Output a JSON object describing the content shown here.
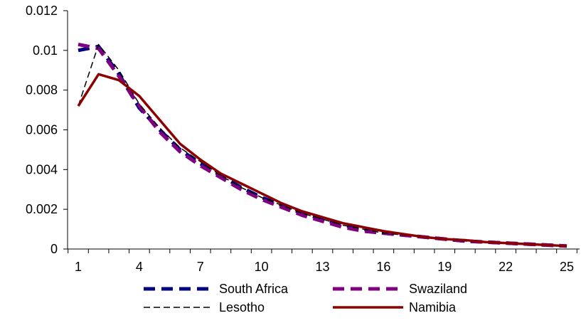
{
  "chart_data": {
    "type": "line",
    "title": "",
    "xlabel": "",
    "ylabel": "",
    "x": [
      1,
      2,
      3,
      4,
      5,
      6,
      7,
      8,
      9,
      10,
      11,
      12,
      13,
      14,
      15,
      16,
      17,
      18,
      19,
      20,
      21,
      22,
      23,
      24,
      25
    ],
    "x_ticks": [
      1,
      4,
      7,
      10,
      13,
      16,
      19,
      22,
      25
    ],
    "x_tick_labels": [
      "1",
      "4",
      "7",
      "10",
      "13",
      "16",
      "19",
      "22",
      "25"
    ],
    "xlim": [
      1,
      25
    ],
    "y_ticks": [
      0,
      0.002,
      0.004,
      0.006,
      0.008,
      0.01,
      0.012
    ],
    "y_tick_labels": [
      "0",
      "0.002",
      "0.004",
      "0.006",
      "0.008",
      "0.01",
      "0.012"
    ],
    "ylim": [
      0,
      0.012
    ],
    "grid": false,
    "legend_position": "bottom",
    "series": [
      {
        "name": "South Africa",
        "color": "#000080",
        "style": "thick-dash",
        "values": [
          0.01,
          0.0102,
          0.0088,
          0.0071,
          0.006,
          0.005,
          0.0043,
          0.0037,
          0.0031,
          0.0026,
          0.0022,
          0.0018,
          0.0015,
          0.0012,
          0.001,
          0.0008,
          0.0007,
          0.0006,
          0.0005,
          0.0004,
          0.00035,
          0.0003,
          0.00025,
          0.0002,
          0.00015
        ]
      },
      {
        "name": "Swaziland",
        "color": "#800080",
        "style": "thick-dash",
        "values": [
          0.0103,
          0.0101,
          0.0087,
          0.0072,
          0.0059,
          0.0049,
          0.0042,
          0.0036,
          0.003,
          0.0025,
          0.0021,
          0.0017,
          0.0014,
          0.0011,
          0.0009,
          0.0008,
          0.0007,
          0.0006,
          0.0005,
          0.0004,
          0.00035,
          0.0003,
          0.00025,
          0.0002,
          0.00015
        ]
      },
      {
        "name": "Lesotho",
        "color": "#000000",
        "style": "thin-dash",
        "values": [
          0.0072,
          0.0103,
          0.009,
          0.0073,
          0.0061,
          0.0051,
          0.0044,
          0.0037,
          0.0031,
          0.0026,
          0.0022,
          0.0018,
          0.0015,
          0.0012,
          0.001,
          0.0008,
          0.0007,
          0.0006,
          0.0005,
          0.0004,
          0.00035,
          0.0003,
          0.00025,
          0.0002,
          0.00015
        ]
      },
      {
        "name": "Namibia",
        "color": "#8B0000",
        "style": "solid",
        "values": [
          0.0072,
          0.0088,
          0.0085,
          0.0077,
          0.0065,
          0.0053,
          0.0045,
          0.0038,
          0.0033,
          0.0028,
          0.0023,
          0.0019,
          0.0016,
          0.0013,
          0.0011,
          0.0009,
          0.00075,
          0.0006,
          0.0005,
          0.00045,
          0.00035,
          0.0003,
          0.00025,
          0.0002,
          0.00015
        ]
      }
    ]
  }
}
